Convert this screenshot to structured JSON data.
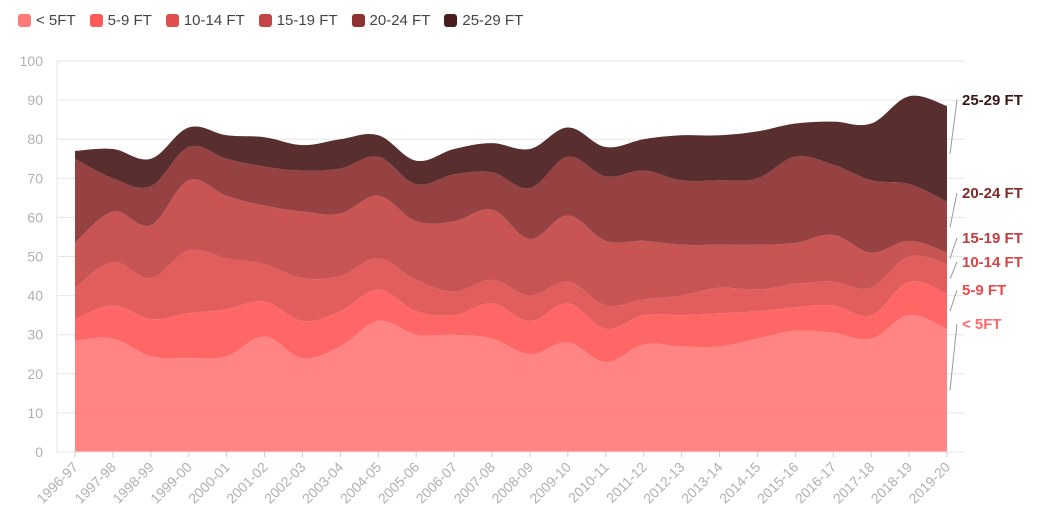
{
  "chart_data": {
    "type": "area",
    "stacked": true,
    "categories": [
      "1996-97",
      "1997-98",
      "1998-99",
      "1999-00",
      "2000-01",
      "2001-02",
      "2002-03",
      "2003-04",
      "2004-05",
      "2005-06",
      "2006-07",
      "2007-08",
      "2008-09",
      "2009-10",
      "2010-11",
      "2011-12",
      "2012-13",
      "2013-14",
      "2014-15",
      "2015-16",
      "2016-17",
      "2017-18",
      "2018-19",
      "2019-20"
    ],
    "series": [
      {
        "name": "< 5FT",
        "color": "#ff7b7b",
        "values": [
          28.5,
          29,
          24.5,
          24,
          24.5,
          29.5,
          24,
          27,
          33.5,
          30,
          30,
          29,
          25,
          28,
          23,
          27.5,
          27,
          27,
          29,
          31,
          30.5,
          29,
          35,
          31.5
        ]
      },
      {
        "name": "5-9 FT",
        "color": "#ff5a5a",
        "values": [
          5.5,
          8.5,
          9.5,
          11.5,
          12,
          9,
          9.5,
          9,
          8,
          6,
          5,
          9,
          8.5,
          10,
          8.5,
          7.5,
          8,
          8.5,
          7,
          6,
          7,
          6,
          8.5,
          9
        ]
      },
      {
        "name": "10-14 FT",
        "color": "#e0504f",
        "values": [
          8,
          11,
          10.5,
          16,
          13,
          9.5,
          11,
          9,
          8,
          8,
          6,
          6,
          6.5,
          5.5,
          6,
          4,
          5,
          6.5,
          5.5,
          6,
          6,
          7,
          6.5,
          7.5
        ]
      },
      {
        "name": "15-19 FT",
        "color": "#c44545",
        "values": [
          11.5,
          13,
          13.5,
          18,
          16,
          15,
          17,
          16,
          16,
          15,
          18,
          18,
          14.5,
          17,
          16.5,
          15,
          13,
          11,
          11.5,
          10.5,
          12,
          9,
          4,
          3
        ]
      },
      {
        "name": "20-24 FT",
        "color": "#8d3232",
        "values": [
          21.5,
          8.5,
          10,
          8.5,
          9.5,
          10,
          10.5,
          11.5,
          10,
          9.5,
          12,
          9.5,
          13,
          15,
          16.5,
          18,
          16.5,
          16.5,
          17,
          22,
          18,
          18.5,
          14.5,
          13
        ]
      },
      {
        "name": "25-29 FT",
        "color": "#4a1c1c",
        "values": [
          2,
          7.5,
          7,
          5,
          6,
          7.5,
          6.5,
          7.5,
          5.5,
          6,
          6.5,
          7.5,
          10,
          7.5,
          7.5,
          8,
          11.5,
          11.5,
          12,
          8.5,
          11,
          14.5,
          22.5,
          24.5
        ]
      }
    ],
    "xlabel": "",
    "ylabel": "",
    "ylim": [
      0,
      100
    ],
    "yticks": [
      0,
      10,
      20,
      30,
      40,
      50,
      60,
      70,
      80,
      90,
      100
    ],
    "grid": true,
    "legend": "top-left",
    "end_labels": [
      "25-29 FT",
      "20-24 FT",
      "15-19 FT",
      "10-14 FT",
      "5-9 FT",
      "< 5FT"
    ]
  }
}
